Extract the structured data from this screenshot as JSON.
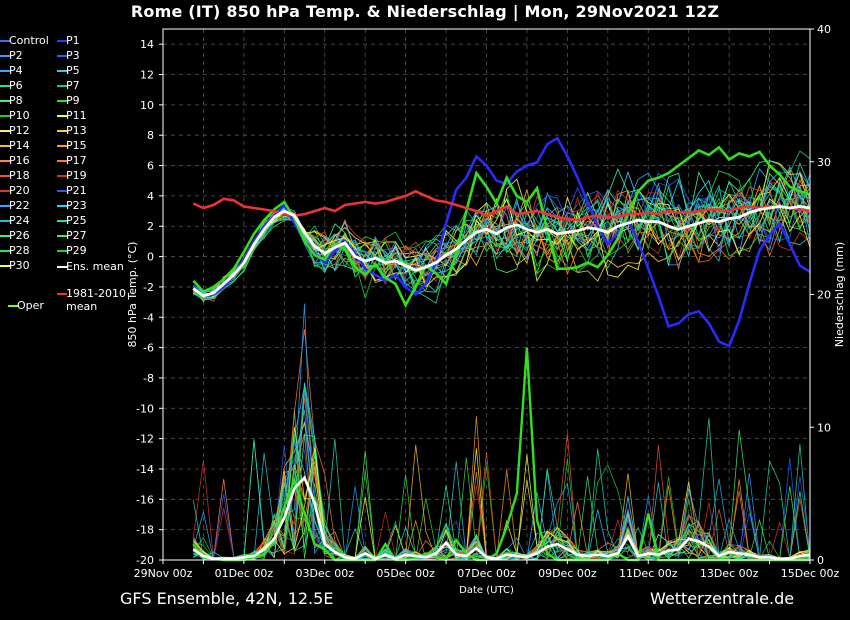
{
  "title": "Rome  (IT)  850 hPa Temp. & Niederschlag | Mon, 29Nov2021 12Z",
  "footer": {
    "left": "GFS Ensemble, 42N, 12.5E",
    "right": "Wetterzentrale.de"
  },
  "chart_data": {
    "type": "line",
    "xlabel": "Date (UTC)",
    "ylabel": "850 hPa Temp. (°C)",
    "y2label": "Niederschlag (mm)",
    "ylim": [
      -20,
      15
    ],
    "y2lim": [
      0,
      40
    ],
    "yticks": [
      -20,
      -18,
      -16,
      -14,
      -12,
      -10,
      -8,
      -6,
      -4,
      -2,
      0,
      2,
      4,
      6,
      8,
      10,
      12,
      14
    ],
    "y2ticks": [
      0,
      10,
      20,
      30,
      40
    ],
    "xlim_hours": [
      0,
      384
    ],
    "xticks": [
      "29Nov 00z",
      "01Dec 00z",
      "03Dec 00z",
      "05Dec 00z",
      "07Dec 00z",
      "09Dec 00z",
      "11Dec 00z",
      "13Dec 00z",
      "15Dec 00z"
    ],
    "grid": true,
    "legend_position": "left",
    "legend": [
      "Control",
      "P1",
      "P2",
      "P3",
      "P4",
      "P5",
      "P6",
      "P7",
      "P8",
      "P9",
      "P10",
      "P11",
      "P12",
      "P13",
      "P14",
      "P15",
      "P16",
      "P17",
      "P18",
      "P19",
      "P20",
      "P21",
      "P22",
      "P23",
      "P24",
      "P25",
      "P26",
      "P27",
      "P28",
      "P29",
      "P30",
      "Ens. mean",
      "1981-2010 mean",
      "Oper"
    ],
    "legend_colors": [
      "#3a6cff",
      "#2a3dff",
      "#3399ff",
      "#2060ff",
      "#33aaff",
      "#33ccdd",
      "#22ddaa",
      "#11cc77",
      "#44ee66",
      "#33dd33",
      "#22cc22",
      "#ffff33",
      "#ffee66",
      "#ffcc33",
      "#ffbb22",
      "#ff9922",
      "#ff8844",
      "#ff7733",
      "#ee5522",
      "#cc3322",
      "#dd3333",
      "#3355ee",
      "#33aaff",
      "#33ccff",
      "#22bbdd",
      "#22ddbb",
      "#33ee99",
      "#44ee55",
      "#33dd44",
      "#22cc33",
      "#ffff44",
      "#ffffff",
      "#ee3333",
      "#66ff33"
    ],
    "x_hours": [
      18,
      24,
      30,
      36,
      42,
      48,
      54,
      60,
      66,
      72,
      78,
      84,
      90,
      96,
      102,
      108,
      114,
      120,
      126,
      132,
      138,
      144,
      150,
      156,
      162,
      168,
      174,
      180,
      186,
      192,
      198,
      204,
      210,
      216,
      222,
      228,
      234,
      240,
      246,
      252,
      258,
      264,
      270,
      276,
      282,
      288,
      294,
      300,
      306,
      312,
      318,
      324,
      330,
      336,
      342,
      348,
      354,
      360,
      366,
      372,
      378,
      384
    ],
    "series_ens_mean": [
      -2.1,
      -2.6,
      -2.4,
      -1.8,
      -1.2,
      -0.4,
      0.8,
      1.8,
      2.6,
      3.0,
      2.7,
      1.6,
      0.7,
      0.2,
      0.6,
      0.9,
      0.0,
      -0.3,
      -0.1,
      -0.4,
      -0.3,
      -0.6,
      -0.9,
      -0.7,
      -0.4,
      0.1,
      0.5,
      1.1,
      1.6,
      1.8,
      1.5,
      1.9,
      2.1,
      1.8,
      1.6,
      1.8,
      1.5,
      1.6,
      1.7,
      1.9,
      1.8,
      1.6,
      2.0,
      2.2,
      2.4,
      2.3,
      2.3,
      2.0,
      1.8,
      2.0,
      2.2,
      2.4,
      2.3,
      2.5,
      2.6,
      2.9,
      3.1,
      3.2,
      3.3,
      3.2,
      3.3,
      3.2
    ],
    "series_climate_mean": [
      3.5,
      3.2,
      3.4,
      3.8,
      3.7,
      3.3,
      3.2,
      3.1,
      3.0,
      2.8,
      2.7,
      2.8,
      3.0,
      3.2,
      3.0,
      3.4,
      3.5,
      3.6,
      3.5,
      3.6,
      3.8,
      4.0,
      4.3,
      4.0,
      3.7,
      3.6,
      3.4,
      3.2,
      3.0,
      2.7,
      3.0,
      3.3,
      2.8,
      2.9,
      3.0,
      2.8,
      2.6,
      2.5,
      2.4,
      2.6,
      2.7,
      2.6,
      2.6,
      2.8,
      2.8,
      2.9,
      2.8,
      3.0,
      2.9,
      2.9,
      3.0,
      3.1,
      3.1,
      3.0,
      3.2,
      3.3,
      3.2,
      3.3,
      3.3,
      3.2,
      3.1,
      3.0
    ],
    "series_oper": [
      -1.6,
      -2.3,
      -2.0,
      -1.5,
      -0.8,
      0.3,
      1.5,
      2.4,
      3.1,
      3.6,
      2.5,
      1.0,
      0.1,
      -0.2,
      0.8,
      0.5,
      -0.7,
      -1.2,
      -0.5,
      -1.4,
      -1.8,
      -3.2,
      -2.0,
      -0.6,
      -1.1,
      -1.8,
      0.2,
      3.0,
      5.5,
      4.6,
      3.5,
      5.2,
      4.0,
      3.6,
      4.5,
      1.8,
      -0.8,
      -0.8,
      -0.7,
      -0.4,
      -0.7,
      0.1,
      1.2,
      2.8,
      4.3,
      5.0,
      5.2,
      5.5,
      6.0,
      6.5,
      7.0,
      6.7,
      7.2,
      6.4,
      6.8,
      6.6,
      6.9,
      6.0,
      5.4,
      4.6,
      4.3,
      4.1
    ],
    "series_p1": [
      -2.0,
      -2.6,
      -2.5,
      -2.0,
      -1.2,
      -0.2,
      1.0,
      2.0,
      2.7,
      3.4,
      2.2,
      1.0,
      0.2,
      -0.4,
      0.4,
      1.0,
      0.2,
      -0.8,
      -1.2,
      -1.6,
      -1.2,
      -2.0,
      -2.5,
      -1.8,
      -0.4,
      2.2,
      4.4,
      5.2,
      6.6,
      6.0,
      5.0,
      4.8,
      5.6,
      6.0,
      6.2,
      7.4,
      7.8,
      6.6,
      5.2,
      3.6,
      2.0,
      0.8,
      1.6,
      2.4,
      1.0,
      -0.8,
      -2.6,
      -4.6,
      -4.4,
      -3.8,
      -3.6,
      -4.4,
      -5.6,
      -5.9,
      -4.2,
      -1.8,
      0.4,
      1.4,
      2.2,
      0.8,
      -0.6,
      -1.0
    ],
    "precip_ens_mean": [
      0.8,
      0.3,
      0.1,
      0.1,
      0.1,
      0.2,
      0.3,
      0.8,
      1.6,
      3.2,
      5.4,
      6.2,
      4.3,
      1.2,
      0.6,
      0.2,
      0.1,
      0.5,
      0.1,
      0.4,
      0.1,
      0.4,
      0.3,
      0.2,
      0.5,
      1.3,
      0.4,
      0.3,
      0.9,
      0.2,
      0.1,
      0.4,
      0.3,
      0.2,
      0.5,
      1.0,
      1.2,
      0.8,
      0.4,
      0.3,
      0.4,
      0.3,
      0.5,
      1.8,
      0.3,
      0.5,
      0.4,
      0.7,
      0.8,
      1.6,
      1.4,
      1.0,
      0.3,
      0.6,
      0.5,
      0.4,
      0.2,
      0.2,
      0.1,
      0.1,
      0.3,
      0.4
    ],
    "precip_oper": [
      1.2,
      0.2,
      0.1,
      0.0,
      0.0,
      0.0,
      0.2,
      0.4,
      1.5,
      4.0,
      6.0,
      3.5,
      1.2,
      0.8,
      0.0,
      0.0,
      0.0,
      0.0,
      0.0,
      1.2,
      0.0,
      0.0,
      0.1,
      0.5,
      0.2,
      0.0,
      1.5,
      0.5,
      0.0,
      0.0,
      0.5,
      2.5,
      5.0,
      16.0,
      3.0,
      0.5,
      0.0,
      0.0,
      0.0,
      0.0,
      0.0,
      0.0,
      0.5,
      0.0,
      0.0,
      3.5,
      0.0,
      0.0,
      0.0,
      0.0,
      0.0,
      0.0,
      0.0,
      0.0,
      0.0,
      0.0,
      0.0,
      0.0,
      0.0,
      0.0,
      0.0,
      0.0
    ]
  }
}
